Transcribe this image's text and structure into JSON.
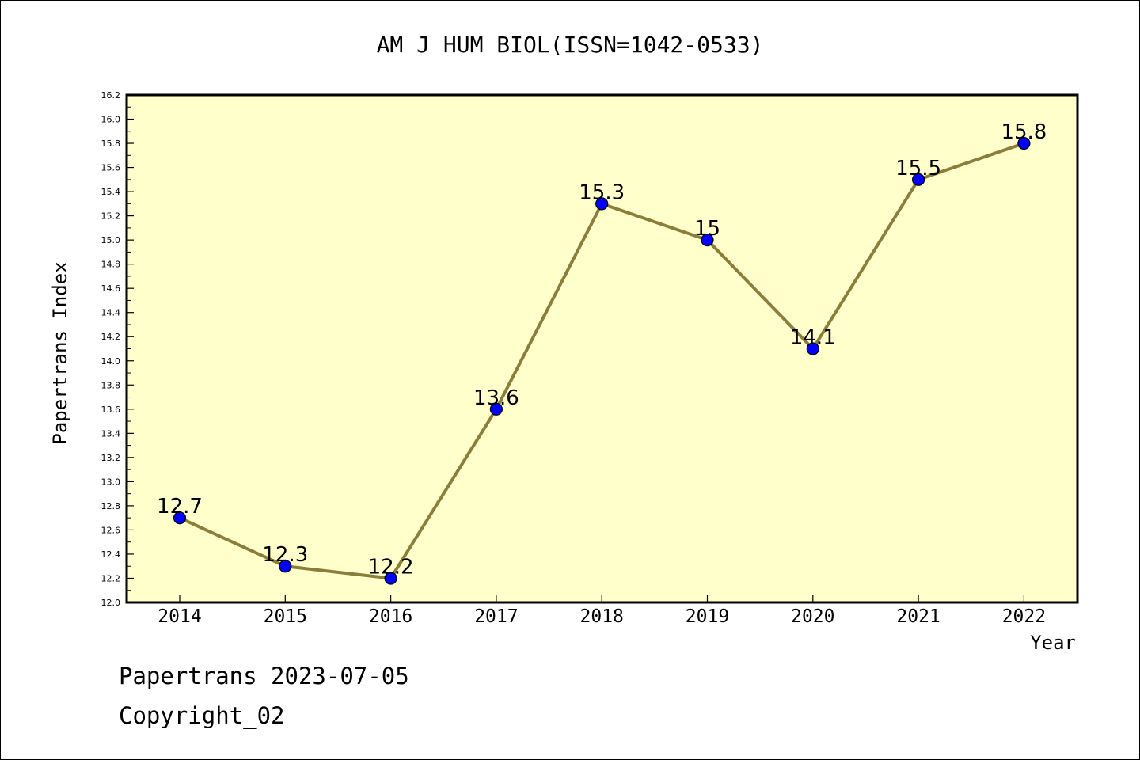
{
  "chart_data": {
    "type": "line",
    "title": "AM J HUM BIOL(ISSN=1042-0533)",
    "xlabel": "Year",
    "ylabel": "Papertrans Index",
    "x": [
      "2014",
      "2015",
      "2016",
      "2017",
      "2018",
      "2019",
      "2020",
      "2021",
      "2022"
    ],
    "series": [
      {
        "values": [
          12.7,
          12.3,
          12.2,
          13.6,
          15.3,
          15.0,
          14.1,
          15.5,
          15.8
        ],
        "data_labels": [
          "12.7",
          "12.3",
          "12.2",
          "13.6",
          "15.3",
          "15",
          "14.1",
          "15.5",
          "15.8"
        ]
      }
    ],
    "ylim": [
      12.0,
      16.2
    ],
    "yticks": [
      "12.0",
      "12.2",
      "12.4",
      "12.6",
      "12.8",
      "13.0",
      "13.2",
      "13.4",
      "13.6",
      "13.8",
      "14.0",
      "14.2",
      "14.4",
      "14.6",
      "14.8",
      "15.0",
      "15.2",
      "15.4",
      "15.6",
      "15.8",
      "16.0",
      "16.2"
    ],
    "grid": false,
    "colors": {
      "plot_background": "#FFFFCC",
      "line": "#8B7D3A",
      "marker": "#0000FF"
    }
  },
  "footer": {
    "line1": "Papertrans 2023-07-05",
    "line2": "Copyright_02"
  }
}
